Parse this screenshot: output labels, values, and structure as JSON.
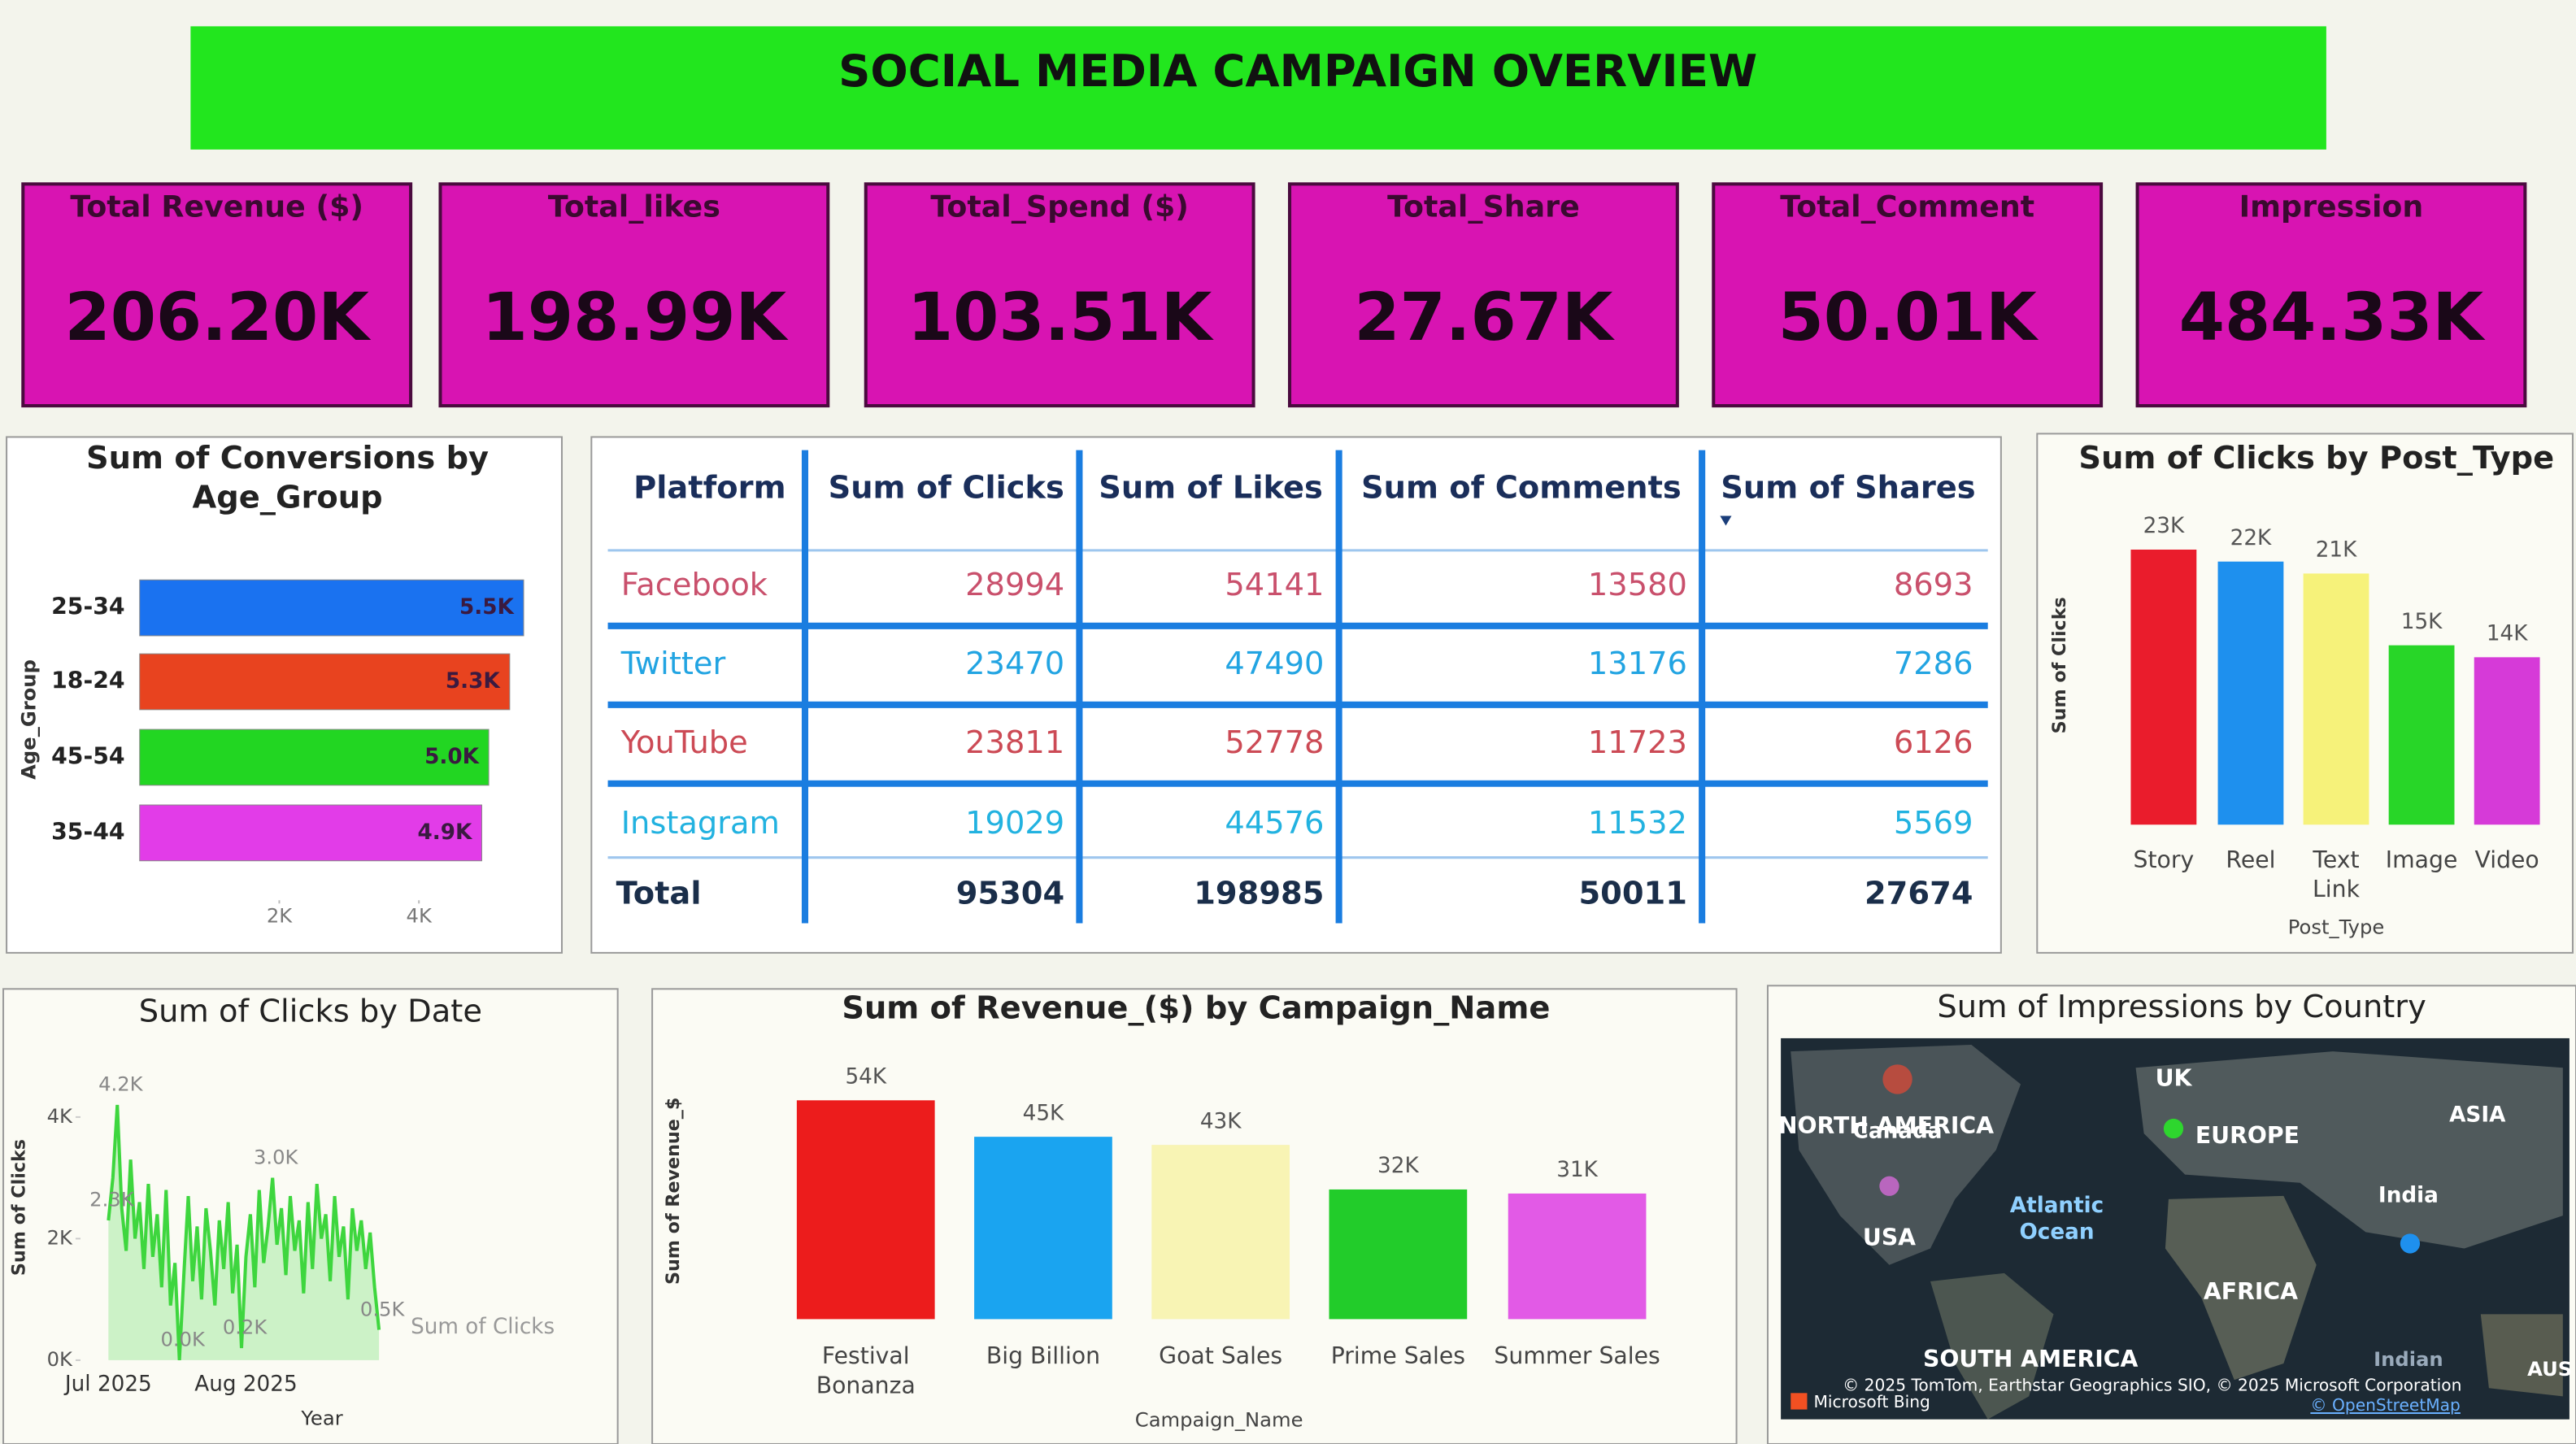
{
  "title": "SOCIAL MEDIA CAMPAIGN OVERVIEW",
  "kpis": [
    {
      "label": "Total Revenue ($)",
      "value": "206.20K"
    },
    {
      "label": "Total_likes",
      "value": "198.99K"
    },
    {
      "label": "Total_Spend ($)",
      "value": "103.51K"
    },
    {
      "label": "Total_Share",
      "value": "27.67K"
    },
    {
      "label": "Total_Comment",
      "value": "50.01K"
    },
    {
      "label": "Impression",
      "value": "484.33K"
    }
  ],
  "table": {
    "columns": [
      "Platform",
      "Sum of Clicks",
      "Sum of Likes",
      "Sum of Comments",
      "Sum of Shares"
    ],
    "rows": [
      [
        "Facebook",
        28994,
        54141,
        13580,
        8693
      ],
      [
        "Twitter",
        23470,
        47490,
        13176,
        7286
      ],
      [
        "YouTube",
        23811,
        52778,
        11723,
        6126
      ],
      [
        "Instagram",
        19029,
        44576,
        11532,
        5569
      ]
    ],
    "row_colors": [
      "#c9506c",
      "#22a4e2",
      "#cc4a55",
      "#22b2e0"
    ],
    "total": [
      "Total",
      95304,
      198985,
      50011,
      27674
    ]
  },
  "chart_data": [
    {
      "type": "hbar",
      "title": "Sum of Conversions by Age_Group",
      "y_label": "Age_Group",
      "categories": [
        "25-34",
        "18-24",
        "45-54",
        "35-44"
      ],
      "values": [
        5500,
        5300,
        5000,
        4900
      ],
      "value_labels": [
        "5.5K",
        "5.3K",
        "5.0K",
        "4.9K"
      ],
      "colors": [
        "#1a72f0",
        "#e8431f",
        "#22d622",
        "#e23ce8"
      ],
      "xlim": [
        0,
        6000
      ],
      "xticks": [
        {
          "value": 2000,
          "label": "2K"
        },
        {
          "value": 4000,
          "label": "4K"
        }
      ]
    },
    {
      "type": "bar",
      "title": "Sum of Clicks by Post_Type",
      "x_label": "Post_Type",
      "y_label": "Sum of Clicks",
      "categories": [
        "Story",
        "Reel",
        "Text Link",
        "Image",
        "Video"
      ],
      "values": [
        23000,
        22000,
        21000,
        15000,
        14000
      ],
      "value_labels": [
        "23K",
        "22K",
        "21K",
        "15K",
        "14K"
      ],
      "colors": [
        "#ea1c2c",
        "#1e90ee",
        "#f6f27a",
        "#28d628",
        "#d63ad8"
      ],
      "ylim": [
        0,
        25000
      ]
    },
    {
      "type": "line",
      "title": "Sum of Clicks by Date",
      "x_label": "Year",
      "y_label": "Sum of Clicks",
      "legend": "Sum of Clicks",
      "color": "#3ed63e",
      "values": [
        2300,
        3000,
        4200,
        2500,
        1800,
        3300,
        2000,
        2600,
        1500,
        2900,
        1700,
        2400,
        1200,
        2800,
        900,
        1600,
        0,
        1400,
        2700,
        1300,
        2200,
        1000,
        2500,
        1800,
        900,
        2300,
        1500,
        2600,
        1100,
        1900,
        200,
        1700,
        2400,
        1200,
        2800,
        1600,
        2200,
        3000,
        1900,
        2500,
        1400,
        2700,
        1800,
        2300,
        1100,
        2600,
        1500,
        2900,
        2000,
        2400,
        1300,
        2700,
        1700,
        2200,
        1000,
        2500,
        1800,
        2300,
        1500,
        2100,
        1200,
        500
      ],
      "point_labels": [
        {
          "x": 2,
          "label": "4.2K"
        },
        {
          "x": 37,
          "label": "3.0K"
        },
        {
          "x": 0,
          "label": "2.3K"
        },
        {
          "x": 16,
          "label": "0.0K"
        },
        {
          "x": 30,
          "label": "0.2K"
        },
        {
          "x": 61,
          "label": "0.5K"
        }
      ],
      "xlim": [
        -10,
        65
      ],
      "xticks": [
        {
          "value": 0,
          "label": "Jul 2025"
        },
        {
          "value": 31,
          "label": "Aug 2025"
        }
      ],
      "ylim": [
        0,
        4500
      ],
      "yticks": [
        {
          "value": 0,
          "label": "0K"
        },
        {
          "value": 2000,
          "label": "2K"
        },
        {
          "value": 4000,
          "label": "4K"
        }
      ]
    },
    {
      "type": "bar",
      "title": "Sum of Revenue_($) by Campaign_Name",
      "x_label": "Campaign_Name",
      "y_label": "Sum of Revenue_$",
      "categories": [
        "Festival Bonanza",
        "Big Billion",
        "Goat Sales",
        "Prime Sales",
        "Summer Sales"
      ],
      "values": [
        54000,
        45000,
        43000,
        32000,
        31000
      ],
      "value_labels": [
        "54K",
        "45K",
        "43K",
        "32K",
        "31K"
      ],
      "colors": [
        "#ec1c1c",
        "#1aa4f0",
        "#f8f4b4",
        "#22cc2a",
        "#e25ae6"
      ],
      "ylim": [
        0,
        60000
      ]
    }
  ],
  "map": {
    "title": "Sum of Impressions by Country",
    "labels": [
      "NORTH AMERICA",
      "Canada",
      "UK",
      "EUROPE",
      "ASIA",
      "Atlantic Ocean",
      "USA",
      "India",
      "AFRICA",
      "SOUTH AMERICA",
      "Indian",
      "AUS"
    ],
    "attribution": "© 2025 TomTom, Earthstar Geographics SIO, © 2025 Microsoft Corporation",
    "osm": "© OpenStreetMap",
    "brand": "Microsoft Bing"
  }
}
